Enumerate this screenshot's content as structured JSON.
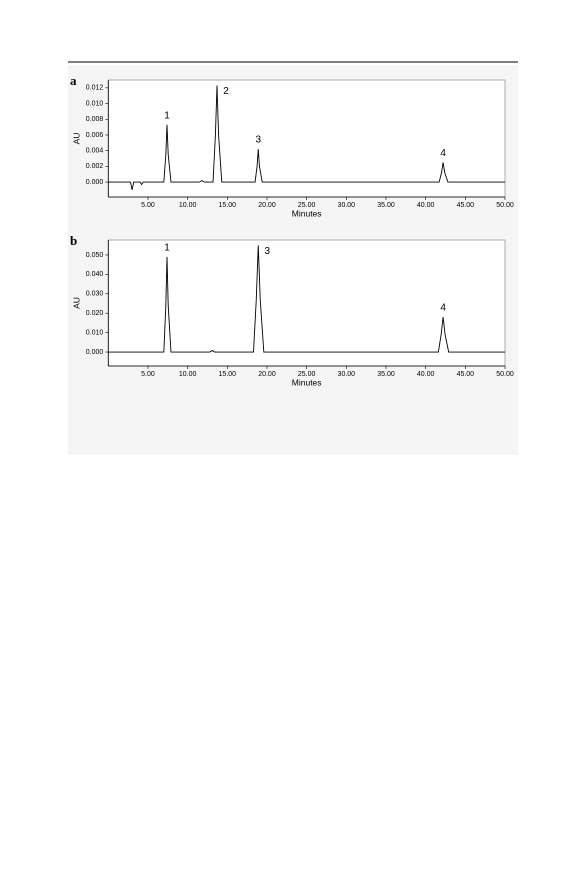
{
  "chart_data": [
    {
      "type": "line",
      "panel_label": "a",
      "y_label": "AU",
      "x_label": "Minutes",
      "x": [
        0,
        2.8,
        3.0,
        3.2,
        4.0,
        4.2,
        4.4,
        7.0,
        7.25,
        7.4,
        7.55,
        7.9,
        11.5,
        11.8,
        12.1,
        13.2,
        13.5,
        13.7,
        13.9,
        14.3,
        18.5,
        18.75,
        18.9,
        19.05,
        19.4,
        41.7,
        42.0,
        42.2,
        42.4,
        42.8,
        50
      ],
      "series": [
        {
          "color": "#000000",
          "values": [
            0,
            0,
            -0.001,
            0,
            0,
            -0.0003,
            0,
            0,
            0.0035,
            0.0073,
            0.0035,
            0,
            0,
            0.0002,
            0,
            0,
            0.006,
            0.0123,
            0.006,
            0,
            0,
            0.002,
            0.0042,
            0.002,
            0,
            0,
            0.0012,
            0.0025,
            0.0012,
            0,
            0
          ]
        }
      ],
      "annotations": [
        "1",
        "2",
        "3",
        "4"
      ],
      "xlim": [
        0,
        50
      ],
      "xticks": [
        {
          "value": 5,
          "label": "5.00"
        },
        {
          "value": 10,
          "label": "10.00"
        },
        {
          "value": 15,
          "label": "15.00"
        },
        {
          "value": 20,
          "label": "20.00"
        },
        {
          "value": 25,
          "label": "25.00"
        },
        {
          "value": 30,
          "label": "30.00"
        },
        {
          "value": 35,
          "label": "35.00"
        },
        {
          "value": 40,
          "label": "40.00"
        },
        {
          "value": 45,
          "label": "45.00"
        },
        {
          "value": 50,
          "label": "50.00"
        }
      ],
      "ylim": [
        -0.0019,
        0.013
      ],
      "yticks": [
        {
          "value": 0,
          "label": "0.000"
        },
        {
          "value": 0.002,
          "label": "0.002"
        },
        {
          "value": 0.004,
          "label": "0.004"
        },
        {
          "value": 0.006,
          "label": "0.006"
        },
        {
          "value": 0.008,
          "label": "0.008"
        },
        {
          "value": 0.01,
          "label": "0.010"
        },
        {
          "value": 0.012,
          "label": "0.012"
        }
      ]
    },
    {
      "type": "line",
      "panel_label": "b",
      "y_label": "AU",
      "x_label": "Minutes",
      "x": [
        0,
        7.0,
        7.25,
        7.4,
        7.55,
        7.9,
        12.8,
        13.1,
        13.4,
        18.3,
        18.65,
        18.9,
        19.15,
        19.6,
        41.6,
        41.95,
        42.2,
        42.45,
        42.9,
        50
      ],
      "series": [
        {
          "color": "#000000",
          "values": [
            0,
            0,
            0.024,
            0.049,
            0.024,
            0,
            0,
            0.0008,
            0,
            0,
            0.027,
            0.055,
            0.027,
            0,
            0,
            0.009,
            0.018,
            0.009,
            0,
            0
          ]
        }
      ],
      "annotations": [
        "1",
        "3",
        "4"
      ],
      "xlim": [
        0,
        50
      ],
      "xticks": [
        {
          "value": 5,
          "label": "5.00"
        },
        {
          "value": 10,
          "label": "10.00"
        },
        {
          "value": 15,
          "label": "15.00"
        },
        {
          "value": 20,
          "label": "20.00"
        },
        {
          "value": 25,
          "label": "25.00"
        },
        {
          "value": 30,
          "label": "30.00"
        },
        {
          "value": 35,
          "label": "35.00"
        },
        {
          "value": 40,
          "label": "40.00"
        },
        {
          "value": 45,
          "label": "45.00"
        },
        {
          "value": 50,
          "label": "50.00"
        }
      ],
      "ylim": [
        -0.0072,
        0.0577
      ],
      "yticks": [
        {
          "value": 0,
          "label": "0.000"
        },
        {
          "value": 0.01,
          "label": "0.010"
        },
        {
          "value": 0.02,
          "label": "0.020"
        },
        {
          "value": 0.03,
          "label": "0.030"
        },
        {
          "value": 0.04,
          "label": "0.040"
        },
        {
          "value": 0.05,
          "label": "0.050"
        }
      ]
    }
  ]
}
